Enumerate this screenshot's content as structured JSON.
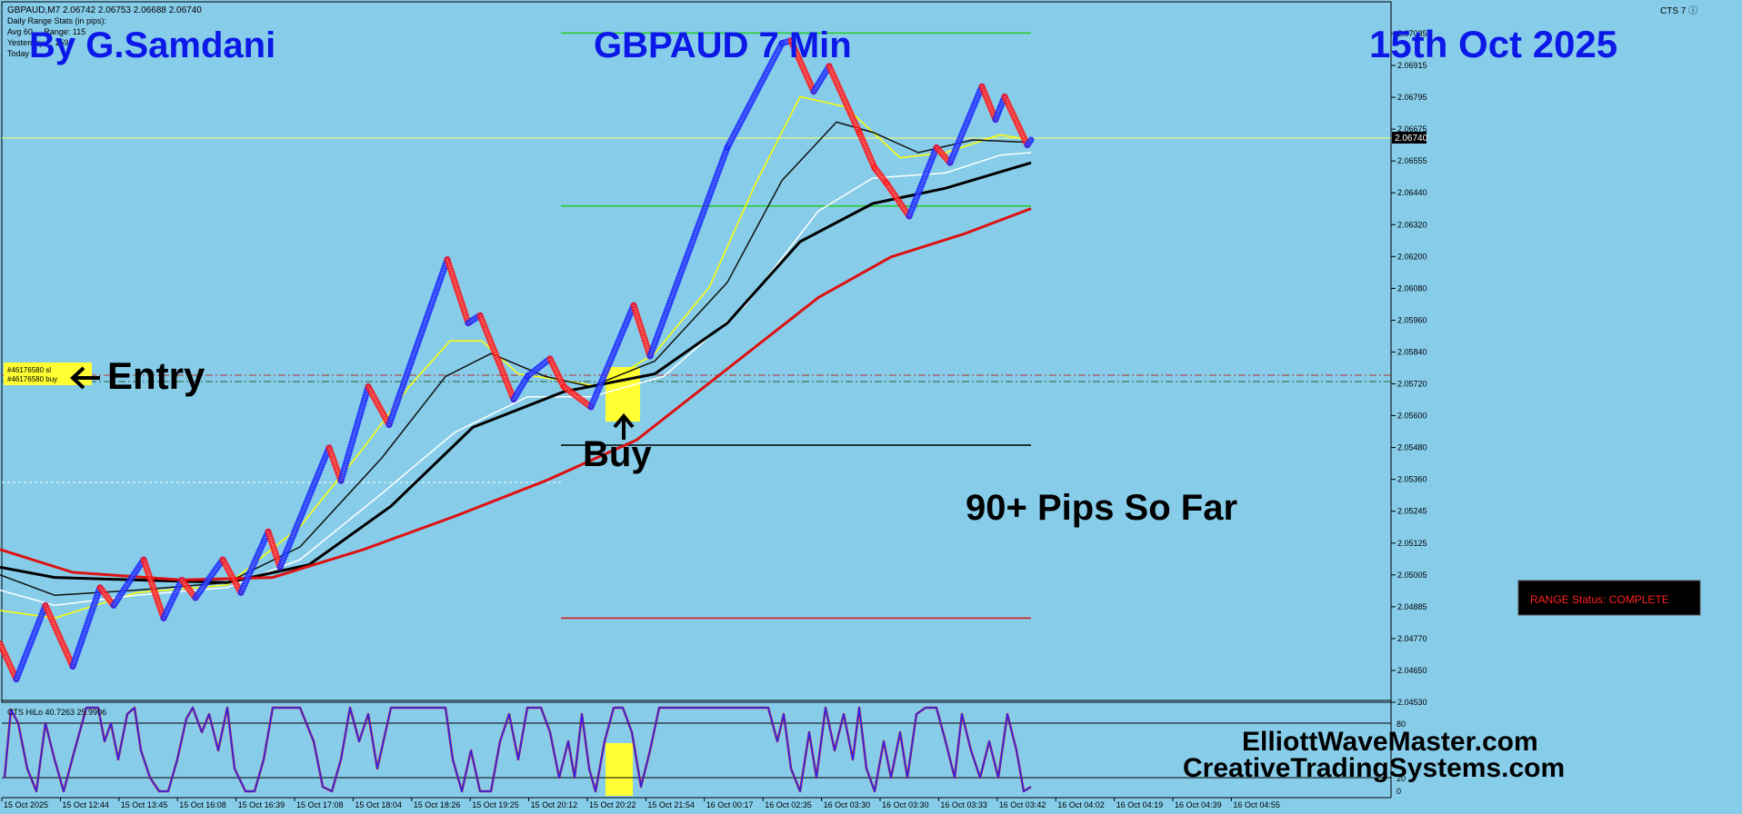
{
  "header": {
    "symbol_line": "GBPAUD,M7  2.06742 2.06753 2.06688 2.06740",
    "stats_lines": [
      "Daily Range Stats (in pips):",
      "Avg 60 ... Range: 115",
      "Yesterday ... 159",
      "Today ..."
    ],
    "cts_label": "CTS 7 ⓘ"
  },
  "overlay": {
    "author": "By G.Samdani",
    "title": "GBPAUD 7 Min",
    "date": "15th Oct 2025",
    "entry_label": "Entry",
    "buy_label": "Buy",
    "pips_label": "90+ Pips So Far",
    "website1": "ElliottWaveMaster.com",
    "website2": "CreativeTradingSystems.com",
    "range_status": "RANGE Status: COMPLETE",
    "order_tags": [
      "#46176580 sl",
      "#46176580 buy"
    ]
  },
  "colors": {
    "background": "#87cdea",
    "bull": "#1a2bff",
    "bear": "#ff1a1a",
    "title_text": "#0b18e8",
    "price_line": "#ffff66",
    "target_green": "#22cc22",
    "highlight": "#ffff33"
  },
  "chart_data": {
    "type": "line",
    "price_axis": {
      "min": 2.0453,
      "max": 2.07155,
      "ticks": [
        "2.07035",
        "2.06915",
        "2.06795",
        "2.06675",
        "2.06555",
        "2.06440",
        "2.06320",
        "2.06200",
        "2.06080",
        "2.05960",
        "2.05840",
        "2.05720",
        "2.05600",
        "2.05480",
        "2.05360",
        "2.05245",
        "2.05125",
        "2.05005",
        "2.04885",
        "2.04770",
        "2.04650",
        "2.04530"
      ],
      "current_price": "2.06740"
    },
    "time_axis": [
      "15 Oct 2025",
      "15 Oct 12:44",
      "15 Oct 13:45",
      "15 Oct 16:08",
      "15 Oct 16:39",
      "15 Oct 17:08",
      "15 Oct 18:04",
      "15 Oct 18:26",
      "15 Oct 19:25",
      "15 Oct 20:12",
      "15 Oct 20:22",
      "15 Oct 21:54",
      "16 Oct 00:17",
      "16 Oct 02:35",
      "16 Oct 03:30",
      "16 Oct 03:30",
      "16 Oct 03:33",
      "16 Oct 03:42",
      "16 Oct 04:02",
      "16 Oct 04:19",
      "16 Oct 04:39",
      "16 Oct 04:55"
    ],
    "price_path": [
      [
        0,
        2.0475
      ],
      [
        18,
        2.0461
      ],
      [
        50,
        2.049
      ],
      [
        80,
        2.0466
      ],
      [
        110,
        2.0497
      ],
      [
        125,
        2.049
      ],
      [
        158,
        2.0508
      ],
      [
        180,
        2.0485
      ],
      [
        200,
        2.05
      ],
      [
        215,
        2.0493
      ],
      [
        245,
        2.0508
      ],
      [
        265,
        2.0495
      ],
      [
        295,
        2.0519
      ],
      [
        308,
        2.0505
      ],
      [
        362,
        2.0552
      ],
      [
        375,
        2.0539
      ],
      [
        405,
        2.0576
      ],
      [
        428,
        2.0561
      ],
      [
        492,
        2.0626
      ],
      [
        515,
        2.0601
      ],
      [
        528,
        2.0604
      ],
      [
        565,
        2.0571
      ],
      [
        580,
        2.058
      ],
      [
        605,
        2.0587
      ],
      [
        620,
        2.0576
      ],
      [
        650,
        2.0568
      ],
      [
        697,
        2.0608
      ],
      [
        715,
        2.0588
      ],
      [
        800,
        2.067
      ],
      [
        860,
        2.0711
      ],
      [
        870,
        2.0712
      ],
      [
        895,
        2.0692
      ],
      [
        912,
        2.0702
      ],
      [
        945,
        2.0676
      ],
      [
        962,
        2.0662
      ],
      [
        975,
        2.0656
      ],
      [
        1000,
        2.0643
      ],
      [
        1030,
        2.067
      ],
      [
        1045,
        2.0664
      ],
      [
        1080,
        2.0694
      ],
      [
        1095,
        2.0681
      ],
      [
        1105,
        2.069
      ],
      [
        1130,
        2.0671
      ],
      [
        1134,
        2.0673
      ]
    ],
    "series": [
      {
        "color": "#ffff00",
        "width": 1.5,
        "values": [
          [
            0,
            2.0488
          ],
          [
            60,
            2.0485
          ],
          [
            150,
            2.0495
          ],
          [
            250,
            2.0498
          ],
          [
            330,
            2.0521
          ],
          [
            400,
            2.0552
          ],
          [
            450,
            2.0576
          ],
          [
            495,
            2.0594
          ],
          [
            530,
            2.0594
          ],
          [
            570,
            2.0581
          ],
          [
            610,
            2.0579
          ],
          [
            660,
            2.0576
          ],
          [
            720,
            2.0589
          ],
          [
            780,
            2.0615
          ],
          [
            830,
            2.0655
          ],
          [
            880,
            2.069
          ],
          [
            930,
            2.0686
          ],
          [
            990,
            2.0666
          ],
          [
            1040,
            2.0668
          ],
          [
            1100,
            2.0675
          ],
          [
            1134,
            2.0673
          ]
        ]
      },
      {
        "color": "#ffffff",
        "width": 1.5,
        "values": [
          [
            0,
            2.0496
          ],
          [
            60,
            2.049
          ],
          [
            150,
            2.0494
          ],
          [
            250,
            2.0497
          ],
          [
            330,
            2.0508
          ],
          [
            420,
            2.0534
          ],
          [
            500,
            2.0558
          ],
          [
            580,
            2.0572
          ],
          [
            650,
            2.0572
          ],
          [
            730,
            2.058
          ],
          [
            820,
            2.0608
          ],
          [
            900,
            2.0645
          ],
          [
            960,
            2.0658
          ],
          [
            1040,
            2.066
          ],
          [
            1100,
            2.0667
          ],
          [
            1134,
            2.0668
          ]
        ]
      },
      {
        "color": "#111111",
        "width": 1.5,
        "values": [
          [
            0,
            2.0502
          ],
          [
            60,
            2.0494
          ],
          [
            150,
            2.0496
          ],
          [
            250,
            2.0499
          ],
          [
            330,
            2.0513
          ],
          [
            420,
            2.0548
          ],
          [
            490,
            2.058
          ],
          [
            540,
            2.0589
          ],
          [
            600,
            2.058
          ],
          [
            650,
            2.0576
          ],
          [
            720,
            2.0586
          ],
          [
            800,
            2.0617
          ],
          [
            860,
            2.0657
          ],
          [
            920,
            2.068
          ],
          [
            960,
            2.0676
          ],
          [
            1010,
            2.0668
          ],
          [
            1070,
            2.0673
          ],
          [
            1134,
            2.0672
          ]
        ]
      },
      {
        "color": "#000000",
        "width": 3,
        "values": [
          [
            0,
            2.0505
          ],
          [
            60,
            2.0501
          ],
          [
            150,
            2.05
          ],
          [
            250,
            2.0499
          ],
          [
            340,
            2.0506
          ],
          [
            430,
            2.0529
          ],
          [
            520,
            2.056
          ],
          [
            620,
            2.0574
          ],
          [
            720,
            2.0581
          ],
          [
            800,
            2.0601
          ],
          [
            880,
            2.0633
          ],
          [
            960,
            2.0648
          ],
          [
            1040,
            2.0654
          ],
          [
            1134,
            2.0664
          ]
        ]
      },
      {
        "color": "#dd1111",
        "width": 3,
        "values": [
          [
            0,
            2.0512
          ],
          [
            80,
            2.0503
          ],
          [
            200,
            2.05
          ],
          [
            300,
            2.0501
          ],
          [
            400,
            2.0512
          ],
          [
            500,
            2.0525
          ],
          [
            600,
            2.0539
          ],
          [
            700,
            2.0555
          ],
          [
            800,
            2.0583
          ],
          [
            900,
            2.0611
          ],
          [
            980,
            2.0627
          ],
          [
            1060,
            2.0636
          ],
          [
            1134,
            2.0646
          ]
        ]
      }
    ],
    "levels": [
      {
        "price": 2.0715,
        "x0": 617,
        "x1": 1134,
        "color": "#22cc22"
      },
      {
        "price": 2.0647,
        "x0": 617,
        "x1": 1134,
        "color": "#22cc22"
      },
      {
        "price": 2.0553,
        "x0": 617,
        "x1": 1134,
        "color": "#000000"
      },
      {
        "price": 2.0485,
        "x0": 617,
        "x1": 1134,
        "color": "#dd1111"
      }
    ],
    "oscillator": {
      "label": "CTS HiLo 40.7263 25.9906",
      "ticks": [
        "80",
        "20",
        "0"
      ],
      "path": [
        [
          5,
          20
        ],
        [
          12,
          95
        ],
        [
          20,
          80
        ],
        [
          30,
          30
        ],
        [
          40,
          5
        ],
        [
          50,
          80
        ],
        [
          60,
          40
        ],
        [
          70,
          5
        ],
        [
          82,
          50
        ],
        [
          95,
          97
        ],
        [
          108,
          97
        ],
        [
          115,
          60
        ],
        [
          122,
          80
        ],
        [
          130,
          40
        ],
        [
          140,
          90
        ],
        [
          148,
          97
        ],
        [
          155,
          50
        ],
        [
          165,
          20
        ],
        [
          175,
          5
        ],
        [
          185,
          5
        ],
        [
          195,
          40
        ],
        [
          205,
          85
        ],
        [
          212,
          97
        ],
        [
          222,
          70
        ],
        [
          230,
          90
        ],
        [
          240,
          50
        ],
        [
          250,
          97
        ],
        [
          258,
          30
        ],
        [
          270,
          5
        ],
        [
          280,
          5
        ],
        [
          290,
          40
        ],
        [
          300,
          97
        ],
        [
          330,
          97
        ],
        [
          345,
          60
        ],
        [
          355,
          10
        ],
        [
          365,
          5
        ],
        [
          375,
          40
        ],
        [
          385,
          97
        ],
        [
          395,
          60
        ],
        [
          405,
          90
        ],
        [
          415,
          30
        ],
        [
          430,
          97
        ],
        [
          450,
          97
        ],
        [
          470,
          97
        ],
        [
          490,
          97
        ],
        [
          498,
          40
        ],
        [
          508,
          5
        ],
        [
          518,
          50
        ],
        [
          528,
          5
        ],
        [
          540,
          5
        ],
        [
          550,
          60
        ],
        [
          560,
          90
        ],
        [
          570,
          40
        ],
        [
          580,
          97
        ],
        [
          595,
          97
        ],
        [
          605,
          70
        ],
        [
          615,
          20
        ],
        [
          625,
          60
        ],
        [
          632,
          20
        ],
        [
          640,
          90
        ],
        [
          648,
          30
        ],
        [
          655,
          5
        ],
        [
          665,
          60
        ],
        [
          675,
          97
        ],
        [
          685,
          97
        ],
        [
          695,
          70
        ],
        [
          705,
          10
        ],
        [
          715,
          50
        ],
        [
          725,
          97
        ],
        [
          800,
          97
        ],
        [
          845,
          97
        ],
        [
          855,
          60
        ],
        [
          862,
          90
        ],
        [
          870,
          30
        ],
        [
          880,
          5
        ],
        [
          890,
          70
        ],
        [
          898,
          20
        ],
        [
          908,
          97
        ],
        [
          918,
          50
        ],
        [
          928,
          90
        ],
        [
          938,
          40
        ],
        [
          945,
          97
        ],
        [
          953,
          30
        ],
        [
          962,
          5
        ],
        [
          972,
          60
        ],
        [
          980,
          20
        ],
        [
          990,
          70
        ],
        [
          998,
          20
        ],
        [
          1008,
          90
        ],
        [
          1018,
          97
        ],
        [
          1030,
          97
        ],
        [
          1040,
          60
        ],
        [
          1050,
          20
        ],
        [
          1058,
          90
        ],
        [
          1068,
          50
        ],
        [
          1078,
          20
        ],
        [
          1088,
          60
        ],
        [
          1098,
          20
        ],
        [
          1108,
          90
        ],
        [
          1118,
          50
        ],
        [
          1126,
          5
        ],
        [
          1134,
          10
        ]
      ]
    }
  }
}
